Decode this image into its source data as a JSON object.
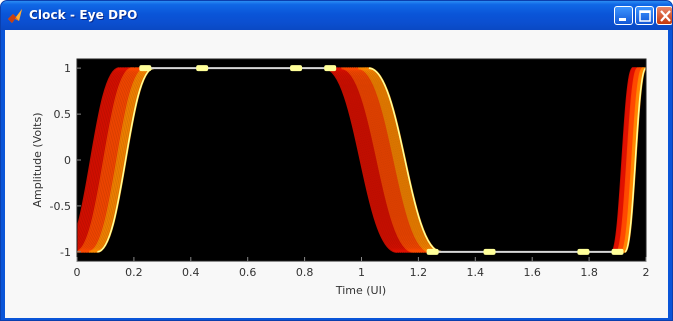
{
  "window": {
    "title": "Clock - Eye DPO",
    "icon": "matlab-icon",
    "controls": [
      "minimize-icon",
      "maximize-icon",
      "close-icon"
    ]
  },
  "chart_data": {
    "type": "heatmap",
    "description_of_marks": "eye diagram persistence trace",
    "xlabel": "Time (UI)",
    "ylabel": "Amplitude (Volts)",
    "xlim": [
      0,
      2
    ],
    "ylim": [
      -1.1,
      1.1
    ],
    "x_ticks": [
      "0",
      "0.2",
      "0.4",
      "0.6",
      "0.8",
      "1",
      "1.2",
      "1.4",
      "1.6",
      "1.8",
      "2"
    ],
    "y_ticks": [
      "1",
      "0.5",
      "0",
      "-0.5",
      "-1"
    ],
    "high_level": 1,
    "low_level": -1,
    "transitions": [
      {
        "direction": "rising",
        "start": -0.05,
        "end": 0.27
      },
      {
        "direction": "falling",
        "start": 0.87,
        "end": 1.28
      },
      {
        "direction": "rising",
        "start": 1.88,
        "end": 2.0
      }
    ],
    "colors": {
      "background": "#000000",
      "hot": "#ffff99",
      "warm": "#ff8800",
      "cool": "#e01000"
    }
  }
}
